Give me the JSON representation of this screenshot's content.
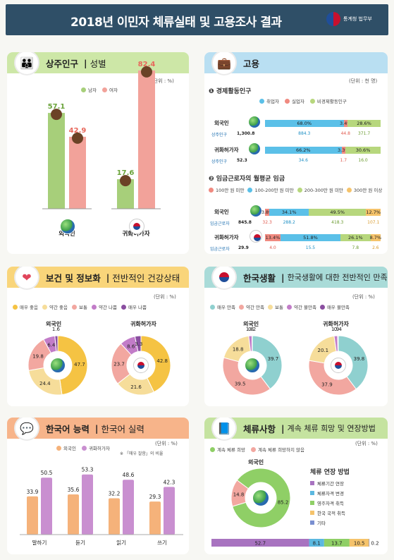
{
  "header": {
    "title": "2018년 이민자 체류실태 및 고용조사 결과",
    "logo_text": "통계청 법무부"
  },
  "population": {
    "title_bold": "상주인구",
    "title_rest": "성별",
    "unit": "(단위 : %)",
    "legend": [
      "남자",
      "여자"
    ],
    "colors": [
      "#a7cf7a",
      "#f2a29a"
    ],
    "groups": [
      {
        "label": "외국인",
        "male": 57.1,
        "female": 42.9
      },
      {
        "label": "귀화허가자",
        "male": 17.6,
        "female": 82.4
      }
    ]
  },
  "employment": {
    "title": "고용",
    "unit": "(단위 : 천 명)",
    "sec1": {
      "title": "경제활동인구",
      "legend": [
        "취업자",
        "실업자",
        "비경제활동인구"
      ],
      "colors": [
        "#5bc0e8",
        "#f08a80",
        "#b7d77d"
      ],
      "rows": [
        {
          "label": "외국인",
          "pcts": [
            68.0,
            3.4,
            28.6
          ],
          "pct_labels": [
            "68.0%",
            "3.4%",
            "28.6%"
          ],
          "sub_label": "상주인구",
          "total": "1,300.8",
          "counts": [
            "884.3",
            "44.8",
            "371.7"
          ]
        },
        {
          "label": "귀화허가자",
          "pcts": [
            66.2,
            3.3,
            30.6
          ],
          "pct_labels": [
            "66.2%",
            "3.3%",
            "30.6%"
          ],
          "sub_label": "상주인구",
          "total": "52.3",
          "counts": [
            "34.6",
            "1.7",
            "16.0"
          ]
        }
      ]
    },
    "sec2": {
      "title": "임금근로자의 월평균 임금",
      "legend": [
        "100만 원 미만",
        "100-200만 원 미만",
        "200-300만 원 미만",
        "300만 원 이상"
      ],
      "colors": [
        "#f08a80",
        "#5bc0e8",
        "#b7d77d",
        "#f5c36b"
      ],
      "rows": [
        {
          "label": "외국인",
          "pcts": [
            3.8,
            34.1,
            49.5,
            12.7
          ],
          "pct_labels": [
            "3.8%",
            "34.1%",
            "49.5%",
            "12.7%"
          ],
          "sub_label": "임금근로자",
          "total": "845.8",
          "counts": [
            "32.3",
            "288.2",
            "418.3",
            "107.1"
          ]
        },
        {
          "label": "귀화허가자",
          "pcts": [
            13.4,
            51.8,
            26.1,
            8.7
          ],
          "pct_labels": [
            "13.4%",
            "51.8%",
            "26.1%",
            "8.7%"
          ],
          "sub_label": "임금근로자",
          "total": "29.9",
          "counts": [
            "4.0",
            "15.5",
            "7.8",
            "2.6"
          ]
        }
      ]
    }
  },
  "health": {
    "title_bold": "보건 및 정보화",
    "title_rest": "전반적인 건강상태",
    "unit": "(단위 : %)",
    "legend": [
      "매우 좋음",
      "약간 좋음",
      "보통",
      "약간 나쁨",
      "매우 나쁨"
    ],
    "colors": [
      "#f5c343",
      "#f6dd9a",
      "#f2a7a0",
      "#c27cc8",
      "#8a4ea0"
    ],
    "groups": [
      {
        "label": "외국인",
        "values": [
          47.7,
          24.4,
          19.8,
          6.4,
          1.6
        ],
        "labels": [
          "47.7",
          "24.4",
          "19.8",
          "6.4",
          "1.6"
        ]
      },
      {
        "label": "귀화허가자",
        "values": [
          42.8,
          21.6,
          23.7,
          8.6,
          3.3
        ],
        "labels": [
          "42.8",
          "21.6",
          "23.7",
          "8.6",
          "3.3"
        ]
      }
    ]
  },
  "korealife": {
    "title_bold": "한국생활",
    "title_rest": "한국생활에 대한 전반적인 만족도",
    "unit": "(단위 : %)",
    "legend": [
      "매우 만족",
      "약간 만족",
      "보통",
      "약간 불만족",
      "매우 불만족"
    ],
    "colors": [
      "#8fd0cf",
      "#f2a7a0",
      "#f6dd9a",
      "#c27cc8",
      "#8a4ea0"
    ],
    "groups": [
      {
        "label": "외국인",
        "values": [
          39.7,
          39.5,
          18.8,
          1.8,
          0.2
        ],
        "labels": [
          "39.7",
          "39.5",
          "18.8",
          "1.8",
          "0.2"
        ]
      },
      {
        "label": "귀화허가자",
        "values": [
          39.8,
          37.9,
          20.1,
          1.9,
          0.4
        ],
        "labels": [
          "39.8",
          "37.9",
          "20.1",
          "1.9",
          "0.4"
        ]
      }
    ]
  },
  "korean": {
    "title_bold": "한국어 능력",
    "title_rest": "한국어 실력",
    "unit": "(단위 : %)",
    "note": "※ 「매우 잘함」의 비율",
    "legend": [
      "외국인",
      "귀화허가자"
    ],
    "colors": [
      "#f5b27a",
      "#c98fd0"
    ],
    "categories": [
      "말하기",
      "듣기",
      "읽기",
      "쓰기"
    ],
    "foreign": [
      33.9,
      35.6,
      32.2,
      29.3
    ],
    "naturalized": [
      50.5,
      53.3,
      48.6,
      42.3
    ]
  },
  "stay": {
    "title_bold": "체류사항",
    "title_rest": "계속 체류 희망 및 연장방법",
    "unit": "(단위 : %)",
    "legend": [
      "계속 체류 희망",
      "계속 체류 희망하지 않음"
    ],
    "colors": [
      "#8fcf66",
      "#f2a7a0"
    ],
    "donut_label": "외국인",
    "donut_values": [
      85.2,
      14.8
    ],
    "donut_labels": [
      "85.2",
      "14.8"
    ],
    "method_title": "체류 연장 방법",
    "methods": [
      "체류기간 연장",
      "체류자격 변경",
      "영주자격 취득",
      "한국 국적 취득",
      "기타"
    ],
    "method_colors": [
      "#a873c0",
      "#5bb8e0",
      "#8fcf66",
      "#f5c36b",
      "#7a8fd0"
    ],
    "bar": [
      52.7,
      8.1,
      13.7,
      10.5,
      0.2
    ],
    "bar_labels": [
      "52.7",
      "8.1",
      "13.7",
      "10.5",
      "0.2"
    ]
  }
}
